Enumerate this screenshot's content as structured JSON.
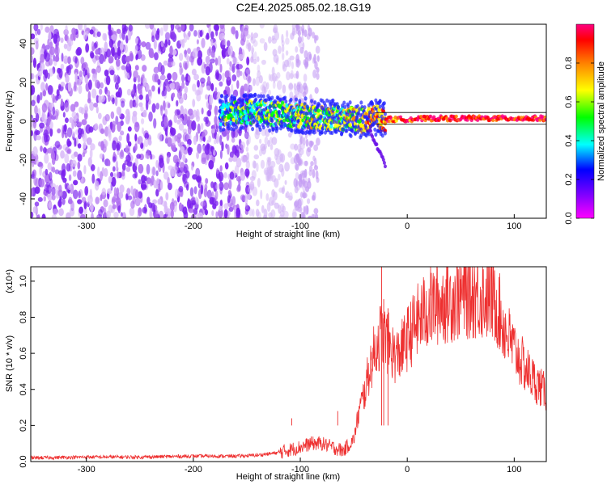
{
  "title": "C2E4.2025.085.02.18.G19",
  "chart_data": [
    {
      "type": "heatmap",
      "title": "C2E4.2025.085.02.18.G19",
      "xlabel": "Height of straight line (km)",
      "ylabel": "Frequency (Hz)",
      "xlim": [
        -352,
        130
      ],
      "ylim": [
        -50,
        50
      ],
      "x_ticks": [
        -300,
        -200,
        -100,
        0,
        100
      ],
      "y_ticks": [
        -40,
        -20,
        0,
        20,
        40
      ],
      "colorbar": {
        "label": "Normalized spectral amplitude",
        "range": [
          0,
          1
        ],
        "ticks": [
          "0.0",
          "0.2",
          "0.4",
          "0.6",
          "0.8"
        ],
        "colors": [
          "#ff00ff",
          "#8000ff",
          "#0000ff",
          "#00ffff",
          "#00ff00",
          "#ffff00",
          "#ff8000",
          "#ff0000",
          "#ff0080"
        ]
      },
      "signal_track": {
        "x": [
          -175,
          -150,
          -125,
          -100,
          -75,
          -50,
          -40,
          -30,
          -20,
          0,
          25,
          50,
          75,
          100,
          125
        ],
        "frequency": [
          4,
          5,
          4,
          3,
          2,
          1,
          0.5,
          2,
          1,
          1,
          1.5,
          1.5,
          1.5,
          1.5,
          1.5
        ],
        "amplitude": [
          0.45,
          0.5,
          0.5,
          0.55,
          0.55,
          0.6,
          0.65,
          0.75,
          0.8,
          0.85,
          0.9,
          0.9,
          0.9,
          0.9,
          0.9
        ]
      },
      "noise_region_end_x": -150,
      "grid": false
    },
    {
      "type": "line",
      "xlabel": "Height of straight line (km)",
      "ylabel": "SNR (10 * v/v)",
      "scale_label": "(x10⁴)",
      "xlim": [
        -352,
        130
      ],
      "ylim": [
        0,
        1.08
      ],
      "x_ticks": [
        -300,
        -200,
        -100,
        0,
        100
      ],
      "y_ticks": [
        0.0,
        0.2,
        0.4,
        0.6,
        0.8,
        1.0
      ],
      "series": [
        {
          "color": "#ee3030",
          "x": [
            -352,
            -300,
            -250,
            -200,
            -160,
            -140,
            -120,
            -100,
            -90,
            -80,
            -70,
            -60,
            -50,
            -45,
            -40,
            -35,
            -30,
            -25,
            -20,
            -15,
            -10,
            -5,
            0,
            10,
            20,
            30,
            40,
            50,
            60,
            70,
            80,
            85,
            90,
            100,
            110,
            120,
            130
          ],
          "values": [
            0.02,
            0.025,
            0.025,
            0.03,
            0.03,
            0.035,
            0.05,
            0.08,
            0.1,
            0.1,
            0.08,
            0.06,
            0.12,
            0.28,
            0.38,
            0.52,
            0.62,
            0.7,
            0.68,
            0.62,
            0.58,
            0.62,
            0.68,
            0.78,
            0.85,
            0.88,
            0.9,
            0.92,
            0.93,
            0.92,
            0.9,
            0.85,
            0.75,
            0.62,
            0.52,
            0.44,
            0.38
          ]
        }
      ],
      "peaks": [
        {
          "x": -24,
          "value": 1.08
        },
        {
          "x": -22,
          "value": 0.9
        },
        {
          "x": -18,
          "value": 0.85
        },
        {
          "x": -108,
          "value": 0.24
        },
        {
          "x": -65,
          "value": 0.28
        }
      ],
      "grid": false
    }
  ]
}
